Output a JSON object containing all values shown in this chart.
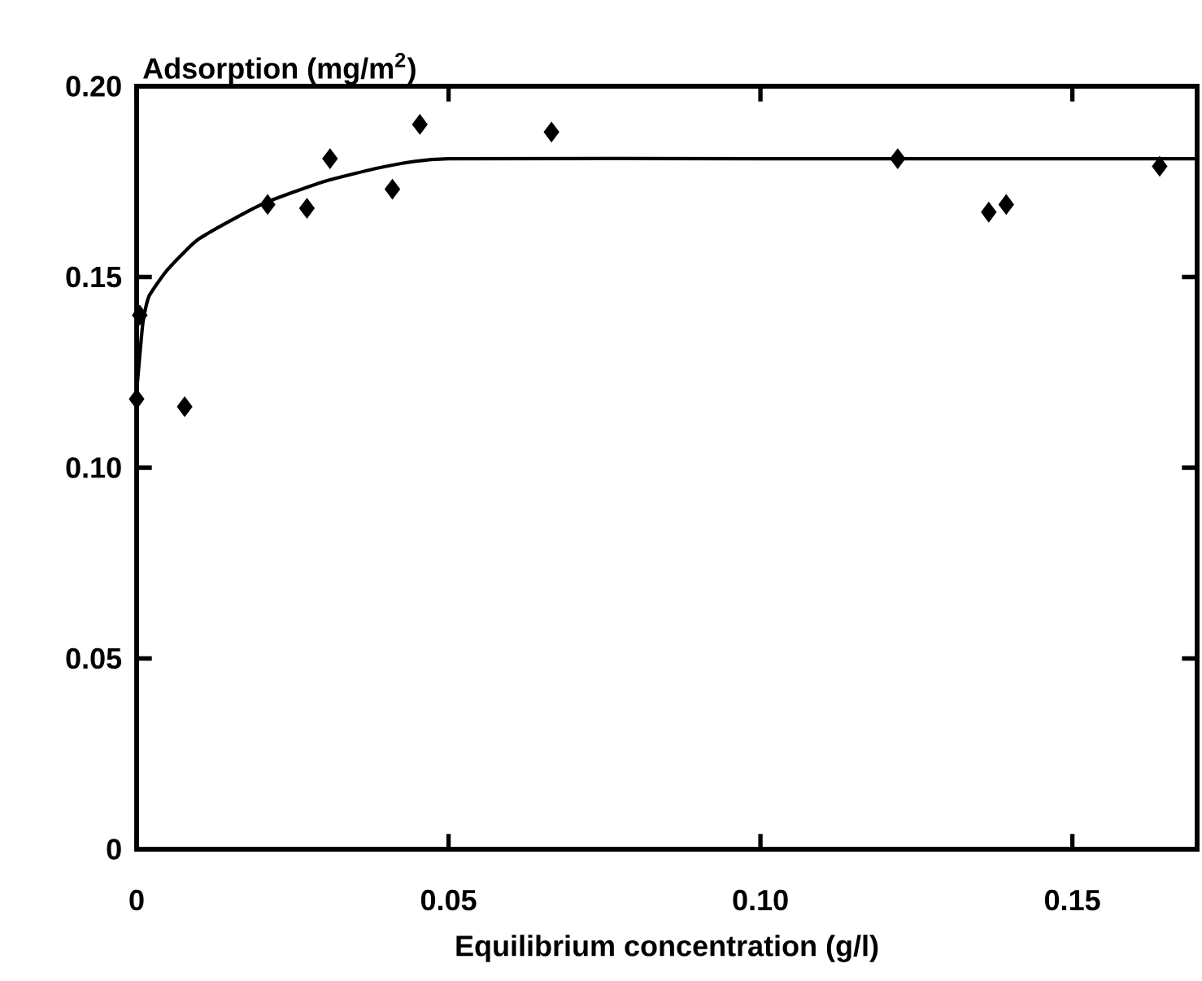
{
  "chart_data": {
    "type": "scatter",
    "xlabel": "Equilibrium concentration (g/l)",
    "ylabel": "Adsorption (mg/m$^{2}$)",
    "xlim": [
      0,
      0.17
    ],
    "ylim": [
      0,
      0.2
    ],
    "xticks": [
      0,
      0.05,
      {
        "value": 0.1,
        "label": "0.10"
      },
      0.15
    ],
    "yticks": [
      0,
      0.05,
      {
        "value": 0.1,
        "label": "0.10"
      },
      0.15,
      {
        "value": 0.2,
        "label": "0.20"
      }
    ],
    "grid": false,
    "series": [
      {
        "marker": "diamond",
        "color": "#000000",
        "x": [
          0,
          0.0005,
          0.0077,
          0.021,
          0.0273,
          0.031,
          0.041,
          0.0454,
          0.0665,
          0.122,
          0.1366,
          0.1394,
          0.164
        ],
        "values": [
          0.118,
          0.14,
          0.116,
          0.169,
          0.168,
          0.181,
          0.173,
          0.19,
          0.188,
          0.181,
          0.167,
          0.169,
          0.179
        ]
      },
      {
        "type": "line",
        "marker": "none",
        "line_style": "solid",
        "color": "#000000",
        "x": [
          0,
          0.001,
          0.002,
          0.005,
          0.01,
          0.02,
          0.03,
          0.04,
          0.05,
          0.1,
          0.17
        ],
        "values": [
          0.12,
          0.138,
          0.145,
          0.152,
          0.16,
          0.169,
          0.175,
          0.179,
          0.181,
          0.181,
          0.181
        ]
      }
    ]
  }
}
